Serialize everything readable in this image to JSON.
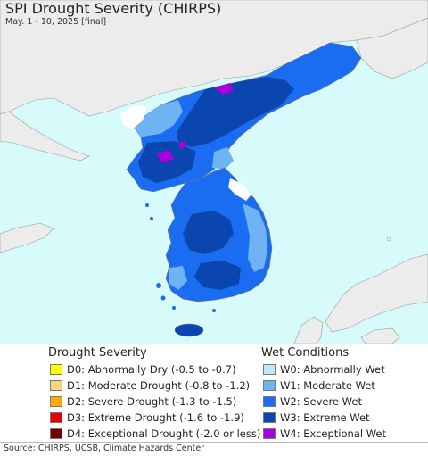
{
  "header": {
    "title": "SPI Drought Severity (CHIRPS)",
    "subtitle": "May. 1 - 10, 2025 [final]"
  },
  "map": {
    "sea_color": "#d7fbfb",
    "land_color": "#ececec",
    "region_shown": "Korean Peninsula"
  },
  "legend": {
    "drought_title": "Drought Severity",
    "drought_items": [
      {
        "label": "D0: Abnormally Dry (-0.5 to -0.7)",
        "color": "#ffff00"
      },
      {
        "label": "D1: Moderate Drought (-0.8 to -1.2)",
        "color": "#fcd37f"
      },
      {
        "label": "D2: Severe Drought (-1.3 to -1.5)",
        "color": "#ffaa00"
      },
      {
        "label": "D3: Extreme Drought (-1.6 to -1.9)",
        "color": "#e60000"
      },
      {
        "label": "D4: Exceptional Drought (-2.0 or less)",
        "color": "#730000"
      }
    ],
    "wet_title": "Wet Conditions",
    "wet_items": [
      {
        "label": "W0: Abnormally Wet",
        "color": "#bfe8fa"
      },
      {
        "label": "W1: Moderate Wet",
        "color": "#70b3f5"
      },
      {
        "label": "W2: Severe Wet",
        "color": "#1a6cf0"
      },
      {
        "label": "W3: Extreme Wet",
        "color": "#0a45b0"
      },
      {
        "label": "W4: Exceptional Wet",
        "color": "#aa00dd"
      }
    ]
  },
  "footer": {
    "source": "Source: CHIRPS, UCSB, Climate Hazards Center"
  }
}
